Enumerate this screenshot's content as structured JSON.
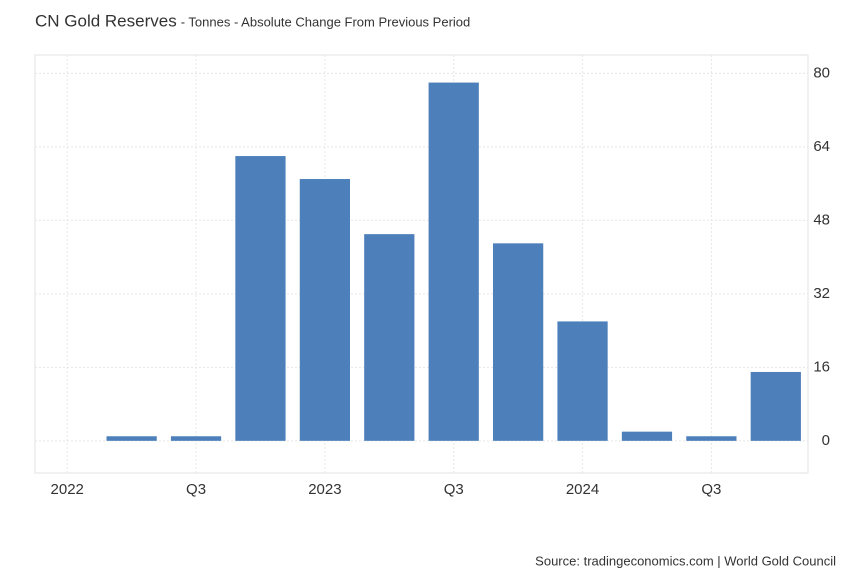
{
  "chart_data": {
    "type": "bar",
    "title": "CN Gold Reserves",
    "subtitle": "- Tonnes - Absolute Change From Previous Period",
    "source": "Source: tradingeconomics.com | World Gold Council",
    "categories": [
      "2022",
      null,
      "Q3",
      null,
      "2023",
      null,
      "Q3",
      null,
      "2024",
      null,
      "Q3",
      null
    ],
    "values": [
      0,
      1,
      1,
      62,
      57,
      45,
      78,
      43,
      26,
      2,
      1,
      15
    ],
    "color": "#4d80bb",
    "ylim": [
      -7,
      84
    ],
    "yticks": [
      0,
      16,
      32,
      48,
      64,
      80
    ],
    "grid": true
  }
}
